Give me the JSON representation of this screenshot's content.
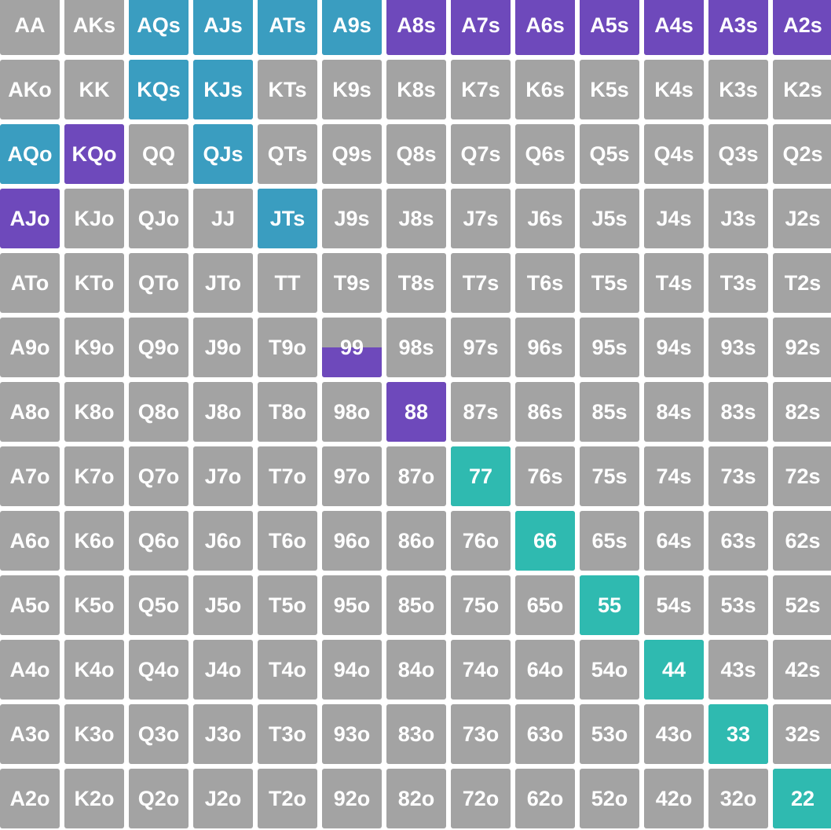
{
  "colors": {
    "default": "#a3a3a3",
    "blue": "#3a9dc0",
    "purple": "#6e49bb",
    "teal": "#2fbab0"
  },
  "hands": [
    [
      "AA",
      "AKs",
      "AQs",
      "AJs",
      "ATs",
      "A9s",
      "A8s",
      "A7s",
      "A6s",
      "A5s",
      "A4s",
      "A3s",
      "A2s"
    ],
    [
      "AKo",
      "KK",
      "KQs",
      "KJs",
      "KTs",
      "K9s",
      "K8s",
      "K7s",
      "K6s",
      "K5s",
      "K4s",
      "K3s",
      "K2s"
    ],
    [
      "AQo",
      "KQo",
      "QQ",
      "QJs",
      "QTs",
      "Q9s",
      "Q8s",
      "Q7s",
      "Q6s",
      "Q5s",
      "Q4s",
      "Q3s",
      "Q2s"
    ],
    [
      "AJo",
      "KJo",
      "QJo",
      "JJ",
      "JTs",
      "J9s",
      "J8s",
      "J7s",
      "J6s",
      "J5s",
      "J4s",
      "J3s",
      "J2s"
    ],
    [
      "ATo",
      "KTo",
      "QTo",
      "JTo",
      "TT",
      "T9s",
      "T8s",
      "T7s",
      "T6s",
      "T5s",
      "T4s",
      "T3s",
      "T2s"
    ],
    [
      "A9o",
      "K9o",
      "Q9o",
      "J9o",
      "T9o",
      "99",
      "98s",
      "97s",
      "96s",
      "95s",
      "94s",
      "93s",
      "92s"
    ],
    [
      "A8o",
      "K8o",
      "Q8o",
      "J8o",
      "T8o",
      "98o",
      "88",
      "87s",
      "86s",
      "85s",
      "84s",
      "83s",
      "82s"
    ],
    [
      "A7o",
      "K7o",
      "Q7o",
      "J7o",
      "T7o",
      "97o",
      "87o",
      "77",
      "76s",
      "75s",
      "74s",
      "73s",
      "72s"
    ],
    [
      "A6o",
      "K6o",
      "Q6o",
      "J6o",
      "T6o",
      "96o",
      "86o",
      "76o",
      "66",
      "65s",
      "64s",
      "63s",
      "62s"
    ],
    [
      "A5o",
      "K5o",
      "Q5o",
      "J5o",
      "T5o",
      "95o",
      "85o",
      "75o",
      "65o",
      "55",
      "54s",
      "53s",
      "52s"
    ],
    [
      "A4o",
      "K4o",
      "Q4o",
      "J4o",
      "T4o",
      "94o",
      "84o",
      "74o",
      "64o",
      "54o",
      "44",
      "43s",
      "42s"
    ],
    [
      "A3o",
      "K3o",
      "Q3o",
      "J3o",
      "T3o",
      "93o",
      "83o",
      "73o",
      "63o",
      "53o",
      "43o",
      "33",
      "32s"
    ],
    [
      "A2o",
      "K2o",
      "Q2o",
      "J2o",
      "T2o",
      "92o",
      "82o",
      "72o",
      "62o",
      "52o",
      "42o",
      "32o",
      "22"
    ]
  ],
  "highlighted": {
    "AQs": {
      "color": "blue",
      "fraction": 1
    },
    "AJs": {
      "color": "blue",
      "fraction": 1
    },
    "ATs": {
      "color": "blue",
      "fraction": 1
    },
    "A9s": {
      "color": "blue",
      "fraction": 1
    },
    "A8s": {
      "color": "purple",
      "fraction": 1
    },
    "A7s": {
      "color": "purple",
      "fraction": 1
    },
    "A6s": {
      "color": "purple",
      "fraction": 1
    },
    "A5s": {
      "color": "purple",
      "fraction": 1
    },
    "A4s": {
      "color": "purple",
      "fraction": 1
    },
    "A3s": {
      "color": "purple",
      "fraction": 1
    },
    "A2s": {
      "color": "purple",
      "fraction": 1
    },
    "KQs": {
      "color": "blue",
      "fraction": 1
    },
    "KJs": {
      "color": "blue",
      "fraction": 1
    },
    "AQo": {
      "color": "blue",
      "fraction": 1
    },
    "KQo": {
      "color": "purple",
      "fraction": 1
    },
    "QJs": {
      "color": "blue",
      "fraction": 1
    },
    "AJo": {
      "color": "purple",
      "fraction": 1
    },
    "JTs": {
      "color": "blue",
      "fraction": 1
    },
    "99": {
      "color": "purple",
      "fraction": 0.5
    },
    "88": {
      "color": "purple",
      "fraction": 1
    },
    "77": {
      "color": "teal",
      "fraction": 1
    },
    "66": {
      "color": "teal",
      "fraction": 1
    },
    "55": {
      "color": "teal",
      "fraction": 1
    },
    "44": {
      "color": "teal",
      "fraction": 1
    },
    "33": {
      "color": "teal",
      "fraction": 1
    },
    "22": {
      "color": "teal",
      "fraction": 1
    }
  }
}
